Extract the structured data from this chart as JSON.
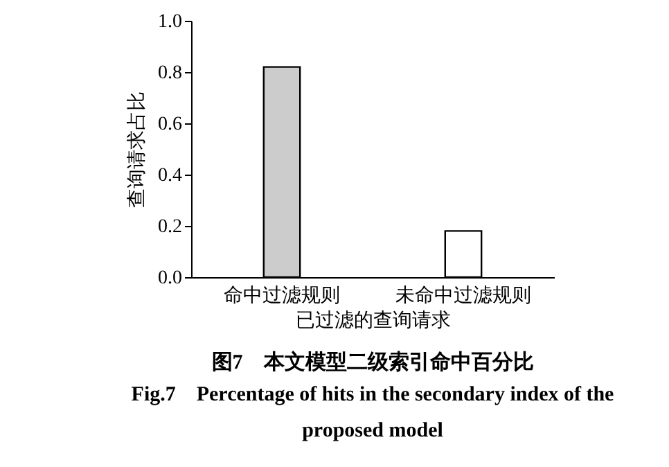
{
  "chart_data": {
    "type": "bar",
    "title": "图7　本文模型二级索引命中百分比",
    "subtitle": "Fig.7　Percentage of hits in the secondary index of the proposed model",
    "xlabel": "已过滤的查询请求",
    "ylabel": "查询请求占比",
    "categories": [
      "命中过滤规则",
      "未命中过滤规则"
    ],
    "values": [
      0.82,
      0.18
    ],
    "colors": [
      "#cccccc",
      "#ffffff"
    ],
    "ylim": [
      0,
      1
    ],
    "yticks": [
      {
        "value": 0,
        "label": "0.0"
      },
      0.2,
      0.4,
      0.6,
      0.8,
      {
        "value": 1,
        "label": "1.0"
      }
    ],
    "grid": false
  }
}
